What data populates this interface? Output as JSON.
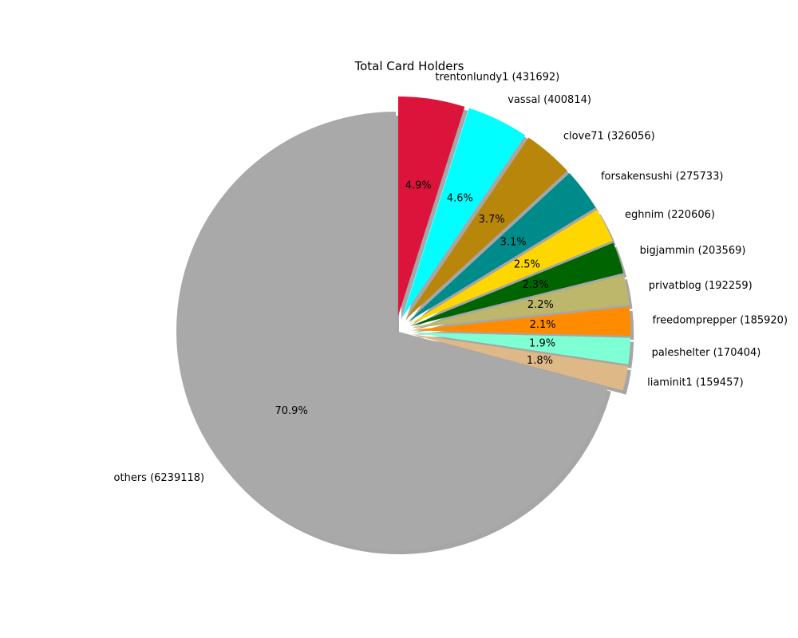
{
  "chart_data": {
    "type": "pie",
    "title": "Total Card Holders",
    "start_angle_deg": 90,
    "direction": "clockwise",
    "shadow": true,
    "slices": [
      {
        "label": "trentonlundy1 (431692)",
        "value": 431692,
        "pct": "4.9%",
        "color": "#DC143C",
        "exploded": true
      },
      {
        "label": "vassal (400814)",
        "value": 400814,
        "pct": "4.6%",
        "color": "#00FFFF",
        "exploded": true
      },
      {
        "label": "clove71 (326056)",
        "value": 326056,
        "pct": "3.7%",
        "color": "#B8860B",
        "exploded": true
      },
      {
        "label": "forsakensushi (275733)",
        "value": 275733,
        "pct": "3.1%",
        "color": "#008B8B",
        "exploded": true
      },
      {
        "label": "eghnim (220606)",
        "value": 220606,
        "pct": "2.5%",
        "color": "#FFD700",
        "exploded": true
      },
      {
        "label": "bigjammin (203569)",
        "value": 203569,
        "pct": "2.3%",
        "color": "#006400",
        "exploded": true
      },
      {
        "label": "privatblog (192259)",
        "value": 192259,
        "pct": "2.2%",
        "color": "#BDB76B",
        "exploded": true
      },
      {
        "label": "freedomprepper (185920)",
        "value": 185920,
        "pct": "2.1%",
        "color": "#FF8C00",
        "exploded": true
      },
      {
        "label": "paleshelter (170404)",
        "value": 170404,
        "pct": "1.9%",
        "color": "#7FFFD4",
        "exploded": true
      },
      {
        "label": "liaminit1 (159457)",
        "value": 159457,
        "pct": "1.8%",
        "color": "#DEB887",
        "exploded": true
      },
      {
        "label": "others (6239118)",
        "value": 6239118,
        "pct": "70.9%",
        "color": "#A9A9A9",
        "exploded": false
      }
    ]
  }
}
